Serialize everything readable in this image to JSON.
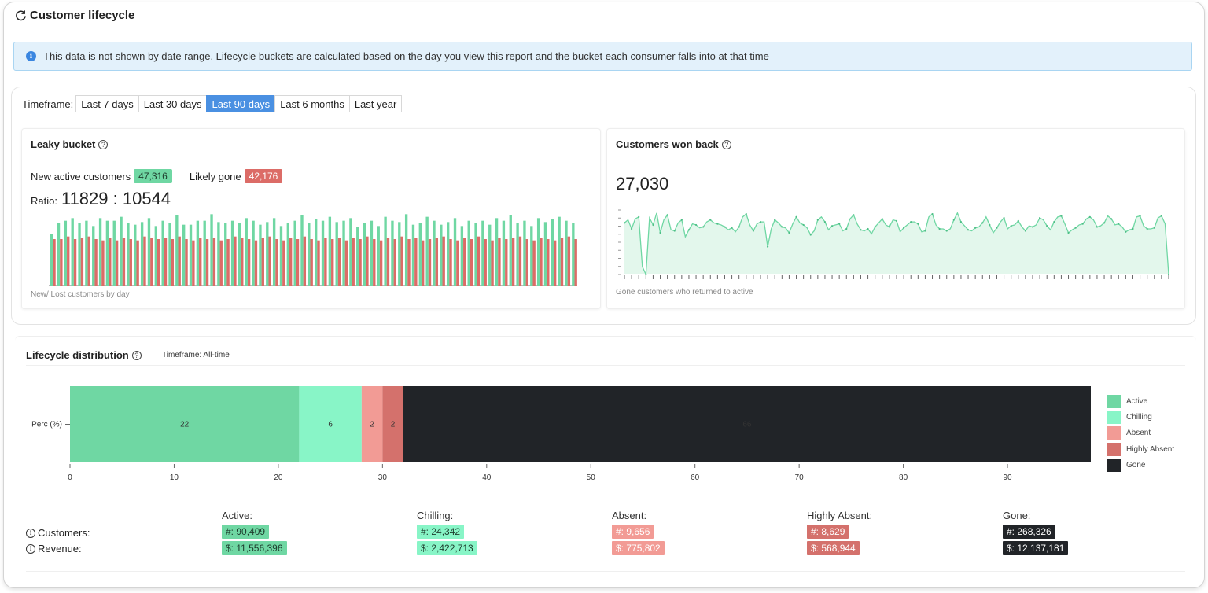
{
  "page": {
    "title": "Customer lifecycle"
  },
  "info_banner": {
    "text": "This data is not shown by date range. Lifecycle buckets are calculated based on the day you view this report and the bucket each consumer falls into at that time"
  },
  "timeframe": {
    "label": "Timeframe:",
    "options": [
      "Last 7 days",
      "Last 30 days",
      "Last 90 days",
      "Last 6 months",
      "Last year"
    ],
    "selected": "Last 90 days"
  },
  "leaky_bucket": {
    "title": "Leaky bucket",
    "new_label": "New active customers",
    "new_value": "47,316",
    "gone_label": "Likely gone",
    "gone_value": "42,176",
    "ratio_label": "Ratio:",
    "ratio_value": "11829 : 10544",
    "caption": "New/ Lost customers by day",
    "colors": {
      "new": "#6fd7a3",
      "gone": "#dc6c67"
    }
  },
  "won_back": {
    "title": "Customers won back",
    "value": "27,030",
    "caption": "Gone customers who returned to active",
    "color": "#6fd7a3"
  },
  "distribution": {
    "title": "Lifecycle distribution",
    "timeframe": "Timeframe: All-time",
    "customers_label": "Customers:",
    "revenue_label": "Revenue:",
    "segments": [
      {
        "name": "Active",
        "label": "Active:",
        "color": "#6fd7a3",
        "count": "#: 90,409",
        "revenue": "$: 11,556,396",
        "text_color": "#1d3b2c"
      },
      {
        "name": "Chilling",
        "label": "Chilling:",
        "color": "#88f5c7",
        "count": "#: 24,342",
        "revenue": "$: 2,422,713",
        "text_color": "#1d3b2c"
      },
      {
        "name": "Absent",
        "label": "Absent:",
        "color": "#f29b95",
        "count": "#: 9,656",
        "revenue": "$: 775,802",
        "text_color": "#ffffff"
      },
      {
        "name": "Highly Absent",
        "label": "Highly Absent:",
        "color": "#d4716c",
        "count": "#: 8,629",
        "revenue": "$: 568,944",
        "text_color": "#ffffff"
      },
      {
        "name": "Gone",
        "label": "Gone:",
        "color": "#212428",
        "count": "#: 268,326",
        "revenue": "$: 12,137,181",
        "text_color": "#ffffff"
      }
    ]
  },
  "chart_data": [
    {
      "type": "bar",
      "title": "",
      "series": [
        {
          "values": [
            40,
            48,
            50,
            52,
            48,
            50,
            46,
            52,
            50,
            50,
            53,
            48,
            47,
            49,
            52,
            46,
            50,
            48,
            54,
            47,
            47,
            50,
            50,
            55,
            49,
            48,
            50,
            48,
            52,
            50,
            47,
            49,
            52,
            46,
            48,
            50,
            54,
            48,
            51,
            50,
            53,
            49,
            50,
            52,
            45,
            48,
            50,
            46,
            53,
            50,
            49,
            55,
            47,
            48,
            53,
            50,
            47,
            49,
            52,
            46,
            50,
            48,
            50,
            47,
            52,
            50,
            54,
            48,
            50,
            46,
            52,
            49,
            51,
            53,
            50,
            48
          ]
        },
        {
          "values": [
            36,
            36,
            38,
            36,
            37,
            38,
            36,
            35,
            37,
            35,
            37,
            36,
            35,
            38,
            37,
            36,
            37,
            36,
            38,
            36,
            35,
            37,
            36,
            37,
            35,
            36,
            38,
            37,
            36,
            35,
            37,
            38,
            36,
            35,
            37,
            36,
            38,
            36,
            35,
            37,
            36,
            37,
            35,
            37,
            36,
            38,
            36,
            35,
            37,
            36,
            38,
            36,
            37,
            35,
            36,
            37,
            38,
            36,
            35,
            37,
            36,
            38,
            36,
            35,
            37,
            36,
            37,
            38,
            36,
            35,
            37,
            36,
            35,
            37,
            38,
            36
          ]
        }
      ]
    },
    {
      "type": "area",
      "title": "",
      "values": [
        52,
        55,
        46,
        56,
        58,
        8,
        0,
        57,
        50,
        62,
        42,
        55,
        60,
        45,
        44,
        52,
        55,
        38,
        45,
        51,
        50,
        47,
        48,
        53,
        55,
        52,
        51,
        50,
        48,
        45,
        47,
        43,
        48,
        58,
        61,
        50,
        44,
        51,
        53,
        53,
        28,
        46,
        55,
        52,
        48,
        47,
        42,
        51,
        58,
        52,
        50,
        47,
        40,
        44,
        55,
        58,
        53,
        45,
        49,
        50,
        51,
        44,
        46,
        56,
        60,
        51,
        45,
        44,
        46,
        41,
        48,
        52,
        56,
        50,
        48,
        55,
        54,
        43,
        47,
        50,
        53,
        53,
        51,
        43,
        44,
        58,
        61,
        50,
        46,
        46,
        44,
        46,
        55,
        62,
        53,
        49,
        45,
        44,
        47,
        48,
        52,
        58,
        50,
        42,
        47,
        53,
        57,
        46,
        49,
        50,
        54,
        48,
        44,
        49,
        48,
        50,
        57,
        55,
        49,
        45,
        53,
        58,
        59,
        51,
        42,
        45,
        47,
        50,
        51,
        56,
        58,
        55,
        48,
        49,
        52,
        59,
        56,
        50,
        51,
        48,
        43,
        45,
        46,
        58,
        59,
        49,
        46,
        46,
        47,
        57,
        59,
        51,
        0
      ]
    },
    {
      "type": "bar",
      "orientation": "horizontal",
      "stacked": true,
      "title": "",
      "categories": [
        "Perc (%)"
      ],
      "series": [
        {
          "name": "Active",
          "values": [
            22
          ]
        },
        {
          "name": "Chilling",
          "values": [
            6
          ]
        },
        {
          "name": "Absent",
          "values": [
            2
          ]
        },
        {
          "name": "Highly Absent",
          "values": [
            2
          ]
        },
        {
          "name": "Gone",
          "values": [
            66
          ]
        }
      ],
      "x_ticks": [
        0,
        10,
        20,
        30,
        40,
        50,
        60,
        70,
        80,
        90
      ],
      "xlim": [
        0,
        98
      ],
      "legend": "right"
    }
  ]
}
